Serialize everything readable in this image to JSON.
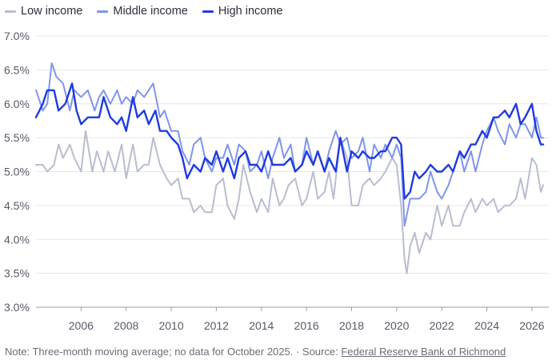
{
  "legend": [
    {
      "label": "Low income",
      "color": "#b9bdcf"
    },
    {
      "label": "Middle income",
      "color": "#7f95ee"
    },
    {
      "label": "High income",
      "color": "#1f3be0"
    }
  ],
  "footer": {
    "note": "Note: Three-month moving average; no data for October 2025. · Source: ",
    "source_link": "Federal Reserve Bank of Richmond"
  },
  "chart_data": {
    "type": "line",
    "title": "",
    "xlabel": "",
    "ylabel": "",
    "ylim": [
      3.0,
      7.0
    ],
    "xlim": [
      2004.0,
      2026.75
    ],
    "grid": true,
    "legend_position": "top-left",
    "y_ticks": [
      "3.0%",
      "3.5%",
      "4.0%",
      "4.5%",
      "5.0%",
      "5.5%",
      "6.0%",
      "6.5%",
      "7.0%"
    ],
    "x_ticks": [
      "2006",
      "2008",
      "2010",
      "2012",
      "2014",
      "2016",
      "2018",
      "2020",
      "2022",
      "2024",
      "2026"
    ],
    "series": [
      {
        "name": "Low income",
        "color": "#b9bdcf",
        "points": [
          [
            2004.0,
            5.1
          ],
          [
            2004.3,
            5.1
          ],
          [
            2004.5,
            5.0
          ],
          [
            2004.8,
            5.1
          ],
          [
            2005.0,
            5.4
          ],
          [
            2005.2,
            5.2
          ],
          [
            2005.5,
            5.4
          ],
          [
            2005.7,
            5.2
          ],
          [
            2006.0,
            5.0
          ],
          [
            2006.2,
            5.6
          ],
          [
            2006.5,
            5.0
          ],
          [
            2006.7,
            5.3
          ],
          [
            2007.0,
            5.0
          ],
          [
            2007.2,
            5.3
          ],
          [
            2007.5,
            5.0
          ],
          [
            2007.8,
            5.4
          ],
          [
            2008.0,
            4.9
          ],
          [
            2008.3,
            5.4
          ],
          [
            2008.5,
            5.0
          ],
          [
            2008.8,
            5.1
          ],
          [
            2009.0,
            5.1
          ],
          [
            2009.2,
            5.5
          ],
          [
            2009.5,
            5.1
          ],
          [
            2009.8,
            4.9
          ],
          [
            2010.0,
            4.8
          ],
          [
            2010.3,
            4.9
          ],
          [
            2010.5,
            4.6
          ],
          [
            2010.8,
            4.6
          ],
          [
            2011.0,
            4.4
          ],
          [
            2011.3,
            4.5
          ],
          [
            2011.5,
            4.4
          ],
          [
            2011.8,
            4.4
          ],
          [
            2012.0,
            4.8
          ],
          [
            2012.3,
            4.9
          ],
          [
            2012.5,
            4.5
          ],
          [
            2012.8,
            4.3
          ],
          [
            2013.0,
            4.6
          ],
          [
            2013.2,
            5.1
          ],
          [
            2013.5,
            4.7
          ],
          [
            2013.8,
            4.4
          ],
          [
            2014.0,
            4.6
          ],
          [
            2014.3,
            4.4
          ],
          [
            2014.5,
            4.9
          ],
          [
            2014.8,
            4.5
          ],
          [
            2015.0,
            4.6
          ],
          [
            2015.2,
            4.8
          ],
          [
            2015.5,
            4.9
          ],
          [
            2015.8,
            4.5
          ],
          [
            2016.0,
            4.6
          ],
          [
            2016.3,
            5.0
          ],
          [
            2016.5,
            4.6
          ],
          [
            2016.8,
            4.7
          ],
          [
            2017.0,
            5.0
          ],
          [
            2017.2,
            4.6
          ],
          [
            2017.5,
            5.5
          ],
          [
            2017.8,
            5.2
          ],
          [
            2018.0,
            4.5
          ],
          [
            2018.3,
            4.5
          ],
          [
            2018.5,
            4.8
          ],
          [
            2018.8,
            4.9
          ],
          [
            2019.0,
            4.8
          ],
          [
            2019.3,
            4.9
          ],
          [
            2019.5,
            5.0
          ],
          [
            2019.8,
            5.2
          ],
          [
            2020.0,
            5.1
          ],
          [
            2020.2,
            4.5
          ],
          [
            2020.35,
            3.7
          ],
          [
            2020.45,
            3.5
          ],
          [
            2020.6,
            3.9
          ],
          [
            2020.8,
            4.1
          ],
          [
            2021.0,
            3.8
          ],
          [
            2021.3,
            4.1
          ],
          [
            2021.5,
            4.0
          ],
          [
            2021.8,
            4.5
          ],
          [
            2022.0,
            4.2
          ],
          [
            2022.3,
            4.5
          ],
          [
            2022.5,
            4.2
          ],
          [
            2022.8,
            4.2
          ],
          [
            2023.0,
            4.4
          ],
          [
            2023.3,
            4.6
          ],
          [
            2023.5,
            4.4
          ],
          [
            2023.8,
            4.6
          ],
          [
            2024.0,
            4.5
          ],
          [
            2024.3,
            4.6
          ],
          [
            2024.5,
            4.4
          ],
          [
            2024.8,
            4.5
          ],
          [
            2025.0,
            4.5
          ],
          [
            2025.3,
            4.6
          ],
          [
            2025.5,
            4.9
          ],
          [
            2025.7,
            4.6
          ],
          [
            2026.0,
            5.2
          ],
          [
            2026.2,
            5.1
          ],
          [
            2026.4,
            4.7
          ],
          [
            2026.5,
            4.8
          ]
        ]
      },
      {
        "name": "Middle income",
        "color": "#7f95ee",
        "points": [
          [
            2004.0,
            6.2
          ],
          [
            2004.3,
            5.9
          ],
          [
            2004.5,
            6.0
          ],
          [
            2004.7,
            6.6
          ],
          [
            2004.9,
            6.4
          ],
          [
            2005.2,
            6.3
          ],
          [
            2005.5,
            5.9
          ],
          [
            2005.7,
            6.2
          ],
          [
            2006.0,
            6.1
          ],
          [
            2006.3,
            6.2
          ],
          [
            2006.6,
            5.9
          ],
          [
            2006.8,
            6.1
          ],
          [
            2007.0,
            6.2
          ],
          [
            2007.3,
            6.0
          ],
          [
            2007.6,
            6.2
          ],
          [
            2007.8,
            6.0
          ],
          [
            2008.0,
            6.1
          ],
          [
            2008.3,
            6.0
          ],
          [
            2008.5,
            6.2
          ],
          [
            2008.8,
            6.1
          ],
          [
            2009.0,
            6.2
          ],
          [
            2009.2,
            6.3
          ],
          [
            2009.5,
            5.8
          ],
          [
            2009.7,
            5.9
          ],
          [
            2010.0,
            5.6
          ],
          [
            2010.3,
            5.6
          ],
          [
            2010.5,
            5.3
          ],
          [
            2010.8,
            5.1
          ],
          [
            2011.0,
            5.4
          ],
          [
            2011.3,
            5.5
          ],
          [
            2011.5,
            5.2
          ],
          [
            2011.8,
            5.0
          ],
          [
            2012.0,
            5.2
          ],
          [
            2012.3,
            5.2
          ],
          [
            2012.5,
            5.4
          ],
          [
            2012.8,
            5.1
          ],
          [
            2013.0,
            5.4
          ],
          [
            2013.3,
            5.3
          ],
          [
            2013.5,
            5.0
          ],
          [
            2013.8,
            5.1
          ],
          [
            2014.0,
            5.3
          ],
          [
            2014.3,
            4.9
          ],
          [
            2014.5,
            5.2
          ],
          [
            2014.8,
            5.5
          ],
          [
            2015.0,
            5.2
          ],
          [
            2015.3,
            5.4
          ],
          [
            2015.5,
            5.0
          ],
          [
            2015.8,
            5.1
          ],
          [
            2016.0,
            5.5
          ],
          [
            2016.3,
            5.1
          ],
          [
            2016.5,
            5.3
          ],
          [
            2016.8,
            5.0
          ],
          [
            2017.0,
            5.3
          ],
          [
            2017.3,
            5.6
          ],
          [
            2017.5,
            5.4
          ],
          [
            2017.8,
            5.5
          ],
          [
            2018.0,
            5.2
          ],
          [
            2018.3,
            5.3
          ],
          [
            2018.5,
            5.5
          ],
          [
            2018.8,
            5.0
          ],
          [
            2019.0,
            5.4
          ],
          [
            2019.3,
            5.2
          ],
          [
            2019.5,
            5.4
          ],
          [
            2019.8,
            5.2
          ],
          [
            2020.0,
            5.4
          ],
          [
            2020.2,
            5.2
          ],
          [
            2020.35,
            4.2
          ],
          [
            2020.6,
            4.6
          ],
          [
            2020.8,
            4.6
          ],
          [
            2021.0,
            4.6
          ],
          [
            2021.3,
            4.7
          ],
          [
            2021.5,
            5.0
          ],
          [
            2021.8,
            4.7
          ],
          [
            2022.0,
            4.6
          ],
          [
            2022.3,
            4.8
          ],
          [
            2022.5,
            5.0
          ],
          [
            2022.8,
            5.3
          ],
          [
            2023.0,
            5.0
          ],
          [
            2023.3,
            5.3
          ],
          [
            2023.5,
            5.0
          ],
          [
            2023.8,
            5.4
          ],
          [
            2024.0,
            5.6
          ],
          [
            2024.3,
            5.8
          ],
          [
            2024.5,
            5.6
          ],
          [
            2024.8,
            5.4
          ],
          [
            2025.0,
            5.7
          ],
          [
            2025.3,
            5.5
          ],
          [
            2025.5,
            5.7
          ],
          [
            2025.7,
            5.7
          ],
          [
            2026.0,
            5.5
          ],
          [
            2026.2,
            5.8
          ],
          [
            2026.4,
            5.5
          ],
          [
            2026.5,
            5.5
          ]
        ]
      },
      {
        "name": "High income",
        "color": "#1f3be0",
        "points": [
          [
            2004.0,
            5.8
          ],
          [
            2004.3,
            6.0
          ],
          [
            2004.5,
            6.2
          ],
          [
            2004.8,
            6.2
          ],
          [
            2005.0,
            5.9
          ],
          [
            2005.3,
            6.0
          ],
          [
            2005.6,
            6.3
          ],
          [
            2005.8,
            5.9
          ],
          [
            2006.0,
            5.7
          ],
          [
            2006.3,
            5.8
          ],
          [
            2006.6,
            5.8
          ],
          [
            2006.8,
            5.8
          ],
          [
            2007.0,
            6.1
          ],
          [
            2007.3,
            5.8
          ],
          [
            2007.6,
            5.7
          ],
          [
            2007.8,
            5.8
          ],
          [
            2008.0,
            5.6
          ],
          [
            2008.3,
            6.1
          ],
          [
            2008.5,
            5.8
          ],
          [
            2008.8,
            5.9
          ],
          [
            2009.0,
            5.7
          ],
          [
            2009.3,
            5.9
          ],
          [
            2009.5,
            5.6
          ],
          [
            2009.8,
            5.6
          ],
          [
            2010.0,
            5.5
          ],
          [
            2010.3,
            5.4
          ],
          [
            2010.5,
            5.2
          ],
          [
            2010.7,
            4.9
          ],
          [
            2011.0,
            5.1
          ],
          [
            2011.3,
            5.0
          ],
          [
            2011.5,
            5.2
          ],
          [
            2011.8,
            5.1
          ],
          [
            2012.0,
            5.3
          ],
          [
            2012.3,
            5.0
          ],
          [
            2012.5,
            5.2
          ],
          [
            2012.8,
            4.9
          ],
          [
            2013.0,
            5.2
          ],
          [
            2013.3,
            5.3
          ],
          [
            2013.5,
            5.1
          ],
          [
            2013.8,
            5.1
          ],
          [
            2014.0,
            5.0
          ],
          [
            2014.3,
            5.3
          ],
          [
            2014.5,
            5.1
          ],
          [
            2014.8,
            5.1
          ],
          [
            2015.0,
            5.1
          ],
          [
            2015.3,
            5.2
          ],
          [
            2015.5,
            5.0
          ],
          [
            2015.8,
            5.1
          ],
          [
            2016.0,
            5.3
          ],
          [
            2016.3,
            5.1
          ],
          [
            2016.5,
            5.3
          ],
          [
            2016.8,
            5.0
          ],
          [
            2017.0,
            5.2
          ],
          [
            2017.3,
            5.0
          ],
          [
            2017.5,
            5.5
          ],
          [
            2017.8,
            5.0
          ],
          [
            2018.0,
            5.3
          ],
          [
            2018.3,
            5.2
          ],
          [
            2018.5,
            5.3
          ],
          [
            2018.8,
            5.2
          ],
          [
            2019.0,
            5.2
          ],
          [
            2019.3,
            5.3
          ],
          [
            2019.5,
            5.3
          ],
          [
            2019.8,
            5.5
          ],
          [
            2020.0,
            5.5
          ],
          [
            2020.2,
            5.4
          ],
          [
            2020.35,
            4.6
          ],
          [
            2020.6,
            4.7
          ],
          [
            2020.8,
            5.0
          ],
          [
            2021.0,
            4.9
          ],
          [
            2021.3,
            5.0
          ],
          [
            2021.5,
            5.1
          ],
          [
            2021.8,
            5.0
          ],
          [
            2022.0,
            5.0
          ],
          [
            2022.3,
            5.1
          ],
          [
            2022.5,
            5.0
          ],
          [
            2022.8,
            5.3
          ],
          [
            2023.0,
            5.2
          ],
          [
            2023.3,
            5.4
          ],
          [
            2023.5,
            5.4
          ],
          [
            2023.8,
            5.6
          ],
          [
            2024.0,
            5.5
          ],
          [
            2024.3,
            5.8
          ],
          [
            2024.5,
            5.8
          ],
          [
            2024.8,
            5.9
          ],
          [
            2025.0,
            5.8
          ],
          [
            2025.3,
            6.0
          ],
          [
            2025.5,
            5.7
          ],
          [
            2025.7,
            5.8
          ],
          [
            2026.0,
            6.0
          ],
          [
            2026.2,
            5.6
          ],
          [
            2026.4,
            5.4
          ],
          [
            2026.5,
            5.4
          ]
        ]
      }
    ]
  }
}
